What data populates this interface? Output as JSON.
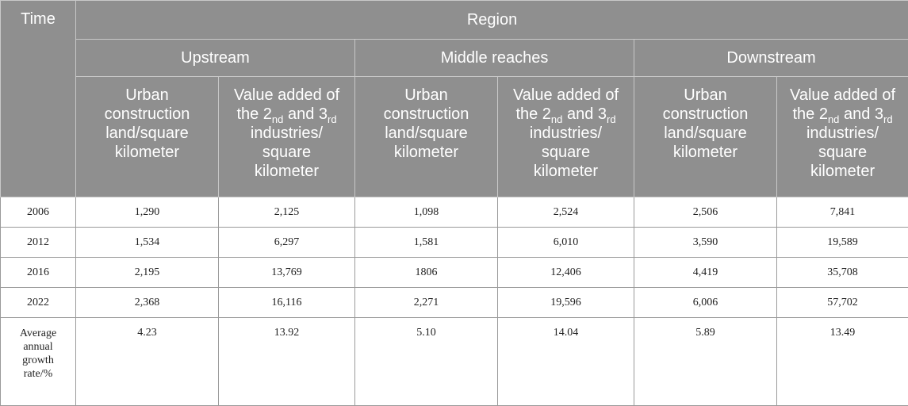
{
  "header": {
    "time": "Time",
    "region": "Region",
    "regions": [
      "Upstream",
      "Middle reaches",
      "Downstream"
    ],
    "col_land": [
      "Urban",
      "construction",
      "land/square",
      "kilometer"
    ],
    "col_value_line1": "Value added of",
    "col_value_line2_a": "the 2",
    "col_value_sub1": "nd",
    "col_value_line2_b": " and 3",
    "col_value_sub2": "rd",
    "col_value_line3": "industries/",
    "col_value_line4": "square",
    "col_value_line5": "kilometer"
  },
  "rows": [
    {
      "time": "2006",
      "values": [
        "1,290",
        "2,125",
        "1,098",
        "2,524",
        "2,506",
        "7,841"
      ]
    },
    {
      "time": "2012",
      "values": [
        "1,534",
        "6,297",
        "1,581",
        "6,010",
        "3,590",
        "19,589"
      ]
    },
    {
      "time": "2016",
      "values": [
        "2,195",
        "13,769",
        "1806",
        "12,406",
        "4,419",
        "35,708"
      ]
    },
    {
      "time": "2022",
      "values": [
        "2,368",
        "16,116",
        "2,271",
        "19,596",
        "6,006",
        "57,702"
      ]
    }
  ],
  "average_row": {
    "time_lines": [
      "Average",
      "annual",
      "growth",
      "rate/%"
    ],
    "values": [
      "4.23",
      "13.92",
      "5.10",
      "14.04",
      "5.89",
      "13.49"
    ]
  }
}
